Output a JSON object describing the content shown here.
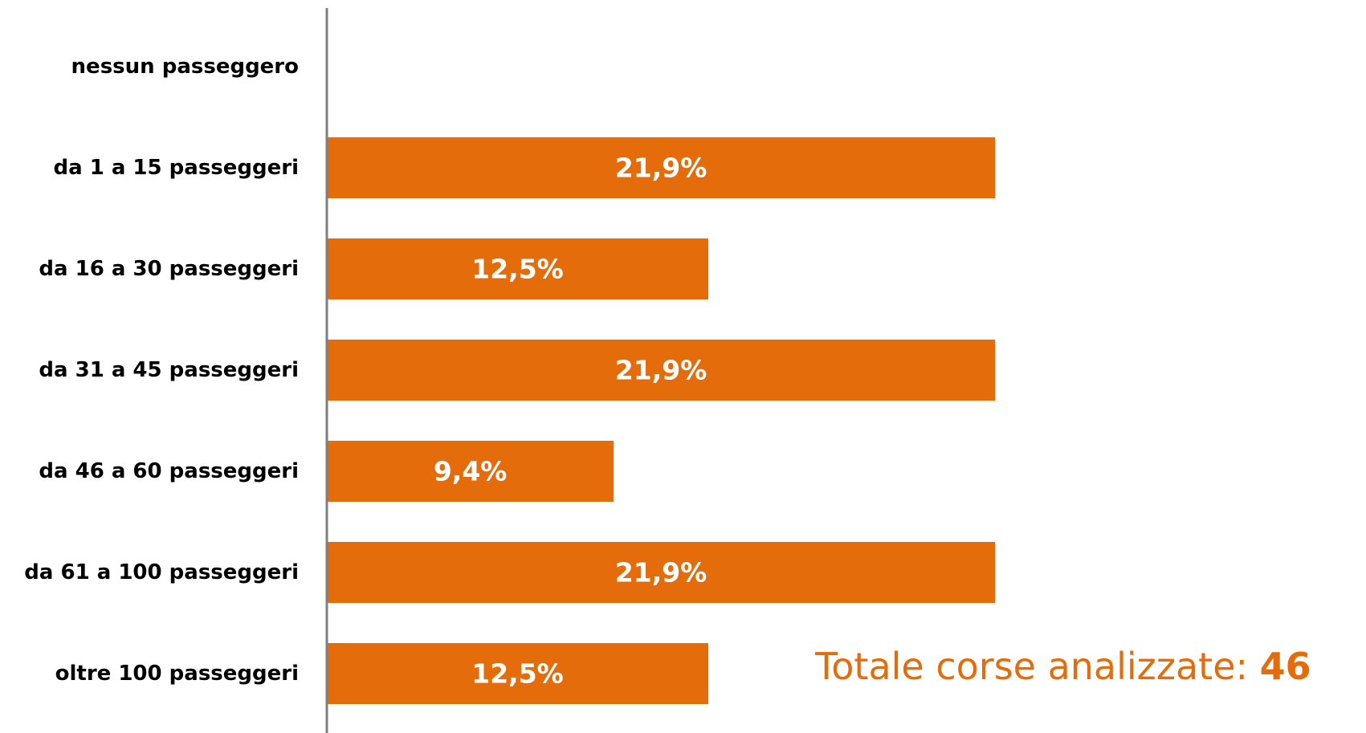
{
  "chart_data": {
    "type": "bar",
    "orientation": "horizontal",
    "categories": [
      "nessun passeggero",
      "da 1 a 15 passeggeri",
      "da 16 a 30 passeggeri",
      "da 31 a 45 passeggeri",
      "da 46 a 60 passeggeri",
      "da 61 a 100 passeggeri",
      "oltre 100 passeggeri"
    ],
    "values": [
      0,
      21.9,
      12.5,
      21.9,
      9.4,
      21.9,
      12.5
    ],
    "data_labels": [
      "",
      "21,9%",
      "12,5%",
      "21,9%",
      "9,4%",
      "21,9%",
      "12,5%"
    ],
    "xlim": [
      0,
      30
    ],
    "title": "",
    "xlabel": "",
    "ylabel": "",
    "grid": false,
    "legend": "none",
    "bar_color": "#e46c0a",
    "axis_color": "#7f7f7f"
  },
  "summary": {
    "label": "Totale corse analizzate: ",
    "value": "46"
  }
}
